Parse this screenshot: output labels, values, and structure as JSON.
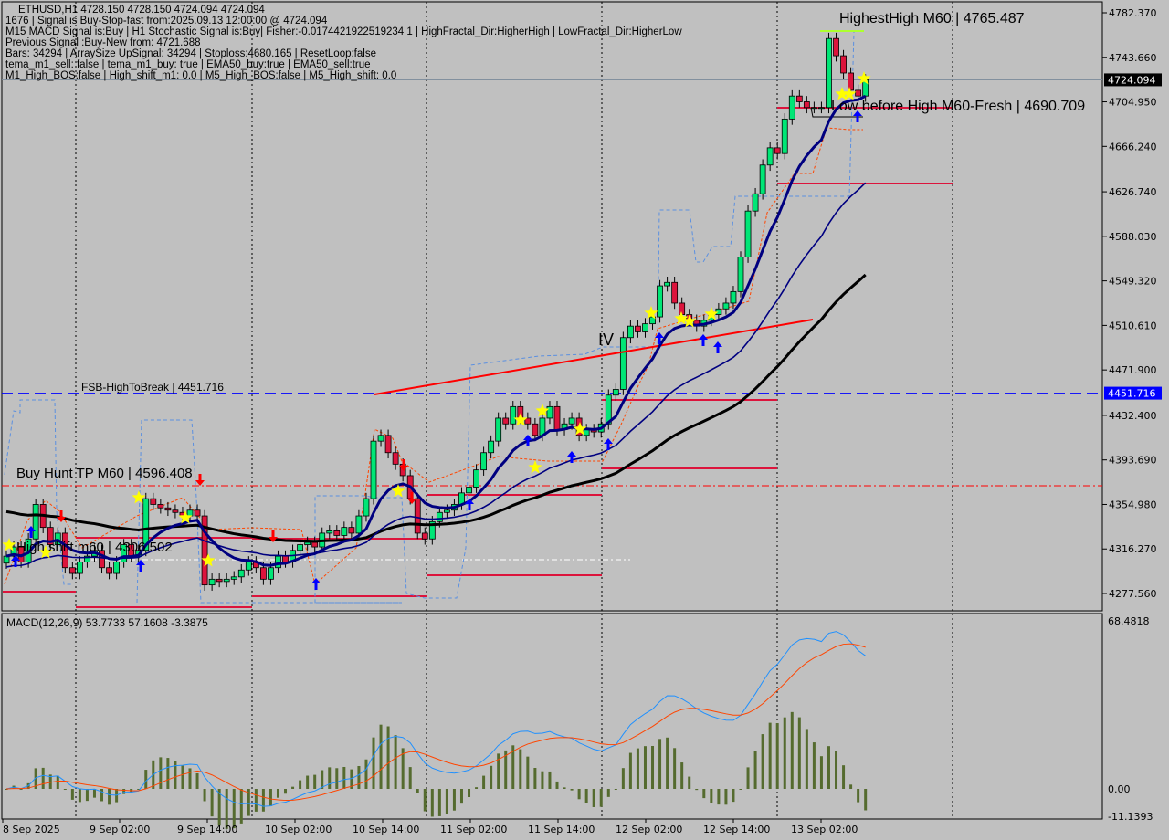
{
  "header": {
    "symbol_line": "ETHUSD,H1  4728.150 4728.150 4724.094 4724.094",
    "lines": [
      "1676 | Signal is Buy-Stop-fast from:2025.09.13 12:00:00 @ 4724.094",
      "M15 MACD Signal is:Buy | H1 Stochastic Signal is:Buy| Fisher:-0.0174421922519234 1 | HighFractal_Dir:HigherHigh | LowFractal_Dir:HigherLow",
      "Previous Signal :Buy-New from: 4721.688",
      "Bars: 34294 | ArraySize UpSignal: 34294 | Stoploss:4680.165 | ResetLoop:false",
      "tema_m1_sell: false | tema_m1_buy: true | EMA50_buy:true | EMA50_sell:true",
      "M1_High_BOS:false | High_shift_m1: 0.0 | M5_High_BOS:false | M5_High_shift: 0.0"
    ]
  },
  "annotations": {
    "highest_high": "HighestHigh   M60 | 4765.487",
    "low_before_high": "Low before High   M60-Fresh | 4690.709",
    "fsb_high": "FSB-HighToBreak | 4451.716",
    "buy_hunt_tp": "Buy Hunt TP M60 | 4596.408",
    "high_shift": "High shift m60 | 4306.502",
    "iv_mark": "IV"
  },
  "chart_data": [
    {
      "type": "candlestick",
      "symbol": "ETHUSD",
      "timeframe": "H1",
      "x_tick_labels": [
        "8 Sep 2025",
        "9 Sep 02:00",
        "9 Sep 14:00",
        "10 Sep 02:00",
        "10 Sep 14:00",
        "11 Sep 02:00",
        "11 Sep 14:00",
        "12 Sep 02:00",
        "12 Sep 14:00",
        "13 Sep 02:00"
      ],
      "y_tick_labels": [
        "4782.370",
        "4743.660",
        "4704.950",
        "4666.240",
        "4626.740",
        "4588.030",
        "4549.320",
        "4510.610",
        "4471.900",
        "4432.400",
        "4393.690",
        "4354.980",
        "4316.270",
        "4277.560"
      ],
      "ylim": [
        4268,
        4792
      ],
      "current_price": {
        "value": 4724.094,
        "label": "4724.094",
        "color": "#000000"
      },
      "fsb_level": {
        "value": 4451.716,
        "label": "4451.716",
        "color": "#0000ff"
      },
      "close": [
        4310,
        4318,
        4305,
        4325,
        4355,
        4335,
        4320,
        4330,
        4300,
        4295,
        4305,
        4310,
        4315,
        4300,
        4295,
        4305,
        4320,
        4310,
        4315,
        4360,
        4355,
        4352,
        4350,
        4348,
        4345,
        4350,
        4345,
        4285,
        4290,
        4288,
        4290,
        4292,
        4298,
        4305,
        4300,
        4290,
        4300,
        4310,
        4305,
        4315,
        4320,
        4322,
        4318,
        4330,
        4332,
        4328,
        4335,
        4330,
        4345,
        4360,
        4410,
        4415,
        4400,
        4390,
        4380,
        4360,
        4330,
        4325,
        4340,
        4348,
        4350,
        4355,
        4365,
        4370,
        4385,
        4400,
        4410,
        4430,
        4425,
        4440,
        4430,
        4425,
        4415,
        4430,
        4440,
        4420,
        4425,
        4430,
        4415,
        4420,
        4418,
        4425,
        4450,
        4455,
        4500,
        4510,
        4505,
        4512,
        4518,
        4545,
        4548,
        4530,
        4520,
        4515,
        4510,
        4515,
        4520,
        4525,
        4530,
        4540,
        4570,
        4610,
        4625,
        4650,
        4665,
        4660,
        4690,
        4710,
        4705,
        4700,
        4700,
        4700,
        4760,
        4745,
        4730,
        4715,
        4710,
        4724
      ],
      "colors": {
        "bull": "#00e676",
        "bear": "#dc143c",
        "ema_fast": "#000080",
        "ema_slow": "#000000",
        "trend": "#ff0000"
      }
    },
    {
      "type": "macd",
      "title": "MACD(12,26,9) 53.7733 57.1608 -3.3875",
      "y_tick_labels": [
        "68.4818",
        "0.00",
        "-11.1393"
      ],
      "ylim": [
        -11.1393,
        68.4818
      ],
      "colors": {
        "macd": "#1e90ff",
        "signal": "#ff4500",
        "histogram": "#556b2f"
      }
    }
  ]
}
